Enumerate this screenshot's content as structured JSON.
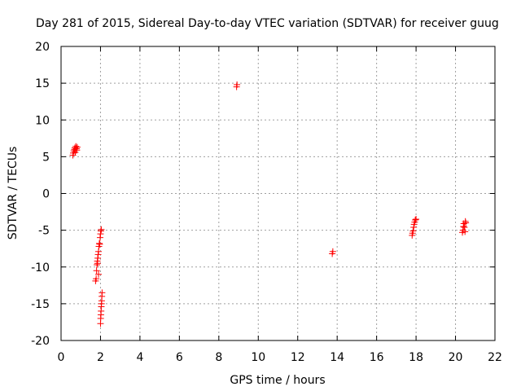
{
  "chart_data": {
    "type": "scatter",
    "title": "Day 281 of 2015, Sidereal Day-to-day VTEC variation (SDTVAR) for receiver guug",
    "xlabel": "GPS time / hours",
    "ylabel": "SDTVAR / TECUs",
    "xlim": [
      0,
      22
    ],
    "ylim": [
      -20,
      20
    ],
    "x_ticks": [
      0,
      2,
      4,
      6,
      8,
      10,
      12,
      14,
      16,
      18,
      20,
      22
    ],
    "y_ticks": [
      -20,
      -15,
      -10,
      -5,
      0,
      5,
      10,
      15,
      20
    ],
    "x_tick_labels": [
      "0",
      "2",
      "4",
      "6",
      "8",
      "10",
      "12",
      "14",
      "16",
      "18",
      "20",
      "22"
    ],
    "y_tick_labels": [
      "-20",
      "-15",
      "-10",
      "-5",
      "0",
      "5",
      "10",
      "15",
      "20"
    ],
    "grid": true,
    "marker": "+",
    "colors": {
      "points": "#ff0000",
      "grid": "#a0a0a0",
      "axis": "#000000"
    },
    "series": [
      {
        "name": "SDTVAR",
        "points": [
          [
            0.6,
            5.2
          ],
          [
            0.62,
            5.5
          ],
          [
            0.65,
            5.8
          ],
          [
            0.68,
            6.0
          ],
          [
            0.7,
            6.2
          ],
          [
            0.72,
            5.6
          ],
          [
            0.75,
            6.4
          ],
          [
            0.78,
            6.1
          ],
          [
            0.8,
            5.9
          ],
          [
            0.82,
            6.3
          ],
          [
            1.75,
            -11.9
          ],
          [
            1.78,
            -11.6
          ],
          [
            1.8,
            -10.5
          ],
          [
            1.82,
            -9.7
          ],
          [
            1.84,
            -9.2
          ],
          [
            1.86,
            -8.8
          ],
          [
            1.88,
            -8.3
          ],
          [
            1.9,
            -7.9
          ],
          [
            1.92,
            -7.2
          ],
          [
            1.94,
            -6.8
          ],
          [
            1.96,
            -6.9
          ],
          [
            1.98,
            -6.0
          ],
          [
            2.0,
            -5.5
          ],
          [
            2.02,
            -5.1
          ],
          [
            2.04,
            -4.9
          ],
          [
            1.85,
            -9.5
          ],
          [
            1.9,
            -11.0
          ],
          [
            2.0,
            -17.7
          ],
          [
            2.01,
            -17.0
          ],
          [
            2.02,
            -16.5
          ],
          [
            2.03,
            -16.0
          ],
          [
            2.04,
            -15.4
          ],
          [
            2.05,
            -15.0
          ],
          [
            2.06,
            -14.6
          ],
          [
            2.07,
            -14.0
          ],
          [
            2.08,
            -13.5
          ],
          [
            8.9,
            14.5
          ],
          [
            8.92,
            14.8
          ],
          [
            13.75,
            -8.2
          ],
          [
            13.78,
            -7.9
          ],
          [
            17.8,
            -5.7
          ],
          [
            17.82,
            -5.4
          ],
          [
            17.85,
            -5.1
          ],
          [
            17.88,
            -4.6
          ],
          [
            17.9,
            -4.2
          ],
          [
            17.93,
            -3.9
          ],
          [
            17.96,
            -3.6
          ],
          [
            18.0,
            -3.5
          ],
          [
            20.35,
            -5.3
          ],
          [
            20.38,
            -5.0
          ],
          [
            20.4,
            -4.5
          ],
          [
            20.42,
            -4.1
          ],
          [
            20.45,
            -4.6
          ],
          [
            20.48,
            -5.2
          ],
          [
            20.5,
            -3.8
          ],
          [
            20.52,
            -4.0
          ]
        ]
      }
    ]
  }
}
